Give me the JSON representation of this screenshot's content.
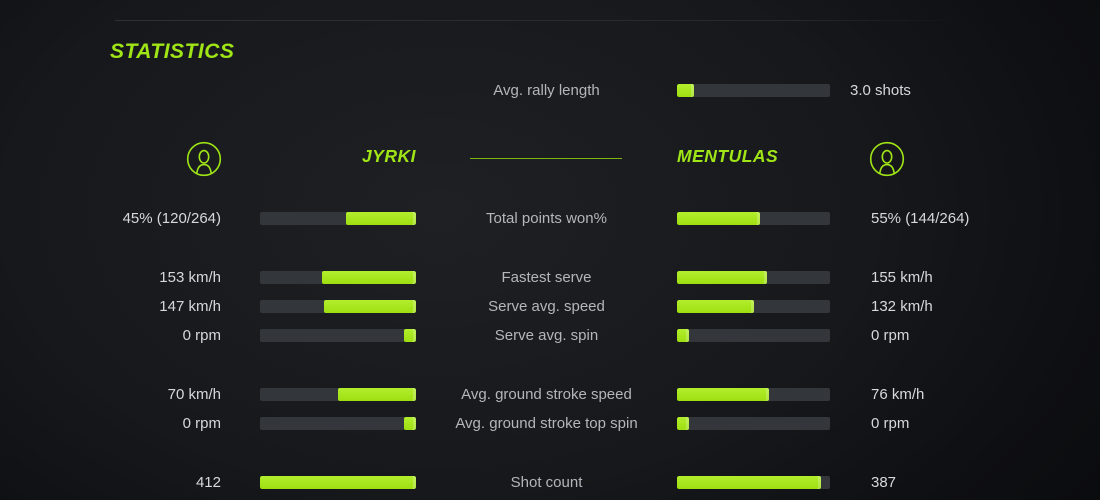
{
  "page": {
    "title": "STATISTICS"
  },
  "colors": {
    "accent": "#a0e616",
    "bar_track": "#33363a",
    "label_text": "#b4b7b9",
    "value_text": "#d7d8da"
  },
  "players": {
    "left": {
      "name": "JYRKI",
      "icon": "person-icon"
    },
    "right": {
      "name": "MENTULAS",
      "icon": "person-icon"
    }
  },
  "rally": {
    "label": "Avg. rally length",
    "value": "3.0 shots",
    "fill_pct": 11
  },
  "stats": [
    {
      "label": "Total points won%",
      "left_value": "45% (120/264)",
      "right_value": "55% (144/264)",
      "left_pct": 45,
      "right_pct": 54
    },
    {
      "label": "Fastest serve",
      "left_value": "153 km/h",
      "right_value": "155 km/h",
      "left_pct": 60,
      "right_pct": 59
    },
    {
      "label": "Serve avg. speed",
      "left_value": "147 km/h",
      "right_value": "132 km/h",
      "left_pct": 59,
      "right_pct": 50
    },
    {
      "label": "Serve avg. spin",
      "left_value": "0 rpm",
      "right_value": "0 rpm",
      "left_pct": 8,
      "right_pct": 8
    },
    {
      "label": "Avg. ground stroke speed",
      "left_value": "70 km/h",
      "right_value": "76 km/h",
      "left_pct": 50,
      "right_pct": 60
    },
    {
      "label": "Avg. ground stroke top spin",
      "left_value": "0 rpm",
      "right_value": "0 rpm",
      "left_pct": 8,
      "right_pct": 8
    },
    {
      "label": "Shot count",
      "left_value": "412",
      "right_value": "387",
      "left_pct": 100,
      "right_pct": 94
    }
  ]
}
